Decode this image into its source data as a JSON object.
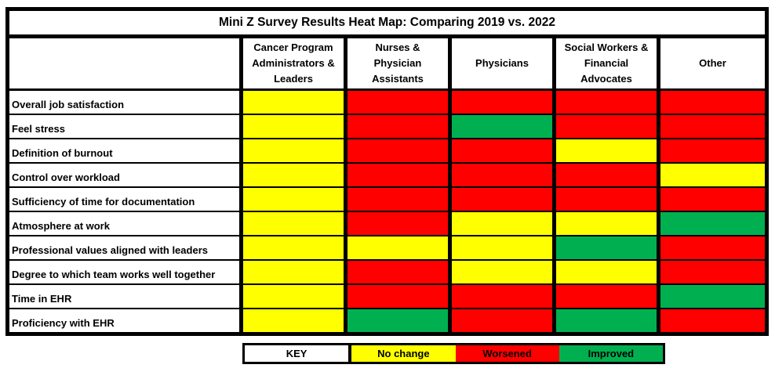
{
  "chart_data": {
    "type": "heatmap",
    "title": "Mini Z Survey Results Heat Map: Comparing 2019 vs. 2022",
    "columns": [
      "Cancer Program Administrators & Leaders",
      "Nurses & Physician Assistants",
      "Physicians",
      "Social Workers & Financial Advocates",
      "Other"
    ],
    "row_labels": [
      "Overall job satisfaction",
      "Feel stress",
      "Definition of burnout",
      "Control over workload",
      "Sufficiency of time for documentation",
      "Atmosphere at work",
      "Professional values aligned with leaders",
      "Degree to which team works well together",
      "Time in EHR",
      "Proficiency with EHR"
    ],
    "values": [
      [
        "No change",
        "Worsened",
        "Worsened",
        "Worsened",
        "Worsened"
      ],
      [
        "No change",
        "Worsened",
        "Improved",
        "Worsened",
        "Worsened"
      ],
      [
        "No change",
        "Worsened",
        "Worsened",
        "No change",
        "Worsened"
      ],
      [
        "No change",
        "Worsened",
        "Worsened",
        "Worsened",
        "No change"
      ],
      [
        "No change",
        "Worsened",
        "Worsened",
        "Worsened",
        "Worsened"
      ],
      [
        "No change",
        "Worsened",
        "No change",
        "No change",
        "Improved"
      ],
      [
        "No change",
        "No change",
        "No change",
        "Improved",
        "Worsened"
      ],
      [
        "No change",
        "Worsened",
        "No change",
        "No change",
        "Worsened"
      ],
      [
        "No change",
        "Worsened",
        "Worsened",
        "Worsened",
        "Improved"
      ],
      [
        "No change",
        "Improved",
        "Worsened",
        "Improved",
        "Worsened"
      ]
    ],
    "color_map": {
      "No change": "#FFFF00",
      "Worsened": "#FF0000",
      "Improved": "#00B050"
    },
    "legend": {
      "title": "KEY",
      "position": "bottom",
      "entries": [
        {
          "label": "No change",
          "color": "#FFFF00"
        },
        {
          "label": "Worsened",
          "color": "#FF0000"
        },
        {
          "label": "Improved",
          "color": "#00B050"
        }
      ]
    },
    "layout": {
      "grid": "black borders",
      "background": "#FFFFFF",
      "border_color": "#000000"
    }
  }
}
